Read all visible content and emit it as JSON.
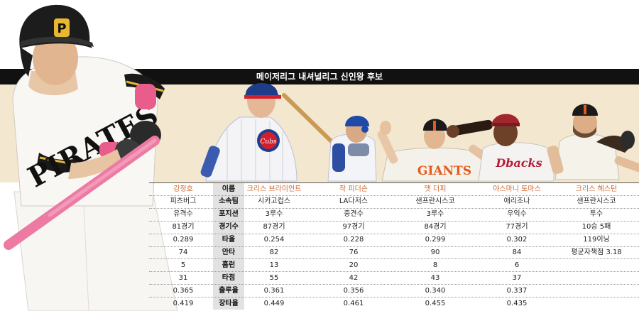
{
  "title": "메이저리그 내셔널리그 신인왕 후보",
  "labels": [
    "이름",
    "소속팀",
    "포지션",
    "경기수",
    "타율",
    "안타",
    "홈런",
    "타점",
    "출루율",
    "장타율"
  ],
  "players": [
    {
      "name": "강정호",
      "values": [
        "피츠버그",
        "유격수",
        "81경기",
        "0.289",
        "74",
        "5",
        "31",
        "0.365",
        "0.419"
      ]
    },
    {
      "name": "크리스 브라이언트",
      "values": [
        "시카고컵스",
        "3루수",
        "87경기",
        "0.254",
        "82",
        "13",
        "55",
        "0.361",
        "0.449"
      ]
    },
    {
      "name": "작 피더슨",
      "values": [
        "LA다저스",
        "중견수",
        "97경기",
        "0.228",
        "76",
        "20",
        "42",
        "0.356",
        "0.461"
      ]
    },
    {
      "name": "맷 더피",
      "values": [
        "샌프란시스코",
        "3루수",
        "84경기",
        "0.299",
        "90",
        "8",
        "43",
        "0.340",
        "0.455"
      ]
    },
    {
      "name": "야스마니 토마스",
      "values": [
        "애리조나",
        "우익수",
        "77경기",
        "0.302",
        "84",
        "6",
        "37",
        "0.337",
        "0.435"
      ]
    },
    {
      "name": "크리스 헤스턴",
      "values": [
        "샌프란시스코",
        "투수",
        "10승 5패",
        "119이닝",
        "평균자책점 3.18",
        "",
        "",
        "",
        ""
      ]
    }
  ],
  "photo_lettering": {
    "cap_p": "P",
    "jersey_pirates": "PIRATES",
    "cubs": "Cubs",
    "giants": "GIANTS",
    "dbacks": "Dbacks"
  },
  "colors": {
    "name_orange": "#d0662e",
    "band": "#111111",
    "tan": "#f3e7d0"
  }
}
